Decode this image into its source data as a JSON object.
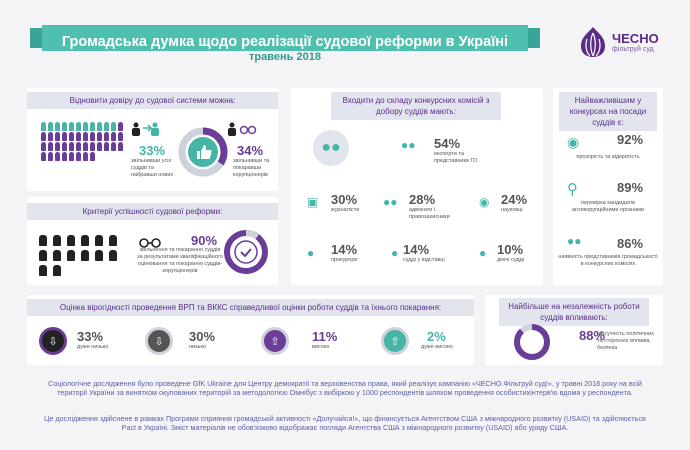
{
  "header": {
    "title": "Громадська думка щодо реалізації судової реформи в Україні",
    "subtitle": "травень 2018",
    "logo_text": "ЧЕСНО",
    "logo_sub": "фільтруй суд",
    "colors": {
      "teal": "#45b5a6",
      "purple": "#6a3d96",
      "dark": "#222222"
    }
  },
  "trust": {
    "title": "Відновити довіру до судової системи можна:",
    "stat1": {
      "value": "33%",
      "caption": "звільнивши усіх суддів та набравши нових"
    },
    "stat2": {
      "value": "34%",
      "caption": "звільнивши та покаравши корупціонерів"
    }
  },
  "criteria": {
    "title": "Критерії успішності судової реформи:",
    "stat": {
      "value": "90%",
      "caption": "звільнення та покарання суддів за результатами кваліфікаційного оцінювання та покарання суддів-корупціонерів"
    }
  },
  "commissions": {
    "title": "Входити до складу конкурсних комісій з добору суддів мають:",
    "items": [
      {
        "value": "54%",
        "caption": "експерти та представники ГО"
      },
      {
        "value": "30%",
        "caption": "журналісти"
      },
      {
        "value": "28%",
        "caption": "адвокати і правозахисники"
      },
      {
        "value": "24%",
        "caption": "науковці"
      },
      {
        "value": "14%",
        "caption": "прокурори"
      },
      {
        "value": "14%",
        "caption": "судді у відставці"
      },
      {
        "value": "10%",
        "caption": "діючі судді"
      }
    ]
  },
  "important": {
    "title": "Найважливішим у конкурсах на посади суддів є:",
    "items": [
      {
        "value": "92%",
        "caption": "прозорість та відкритість"
      },
      {
        "value": "89%",
        "caption": "перевірка кандидатів антикорупційними органами"
      },
      {
        "value": "86%",
        "caption": "наявність представників громадськості в конкурсних комісіях"
      }
    ]
  },
  "assessment": {
    "title": "Оцінка вірогідності проведення ВРП та ВККС справедливої оцінки роботи суддів та їхнього покарання:",
    "items": [
      {
        "value": "33%",
        "caption": "дуже низько",
        "level": 33
      },
      {
        "value": "30%",
        "caption": "низько",
        "level": 30
      },
      {
        "value": "11%",
        "caption": "високо",
        "level": 11
      },
      {
        "value": "2%",
        "caption": "дуже високо",
        "level": 2
      }
    ]
  },
  "independence": {
    "title": "Найбільше на незалежність роботи суддів впливають:",
    "stat": {
      "value": "88%",
      "caption": "відсутність політичних та сторонніх впливів, безпека"
    }
  },
  "footer": {
    "p1": "Соціологічне дослідження було проведене GfK Ukraine для Центру демократії та верховенства права, який реалізує кампанію «ЧЕСНО.Фільтруй суд!», у травні 2018 року на всій території України за винятком окупованих територій за методологією Омнібус з вибіркою у 1000 респондентів шляхом проведення особистихінтерв'ю вдома у респондента.",
    "p2": "Це дослідження здійснене в рамках Програми сприяння громадській активності «Долучайся!», що фінансується Агентством США з міжнародного розвитку (USAID) та здійснюється Pact в Україні. Зміст матеріалів не обов'язково відображає погляди Агентства США з міжнародного розвитку (USAID) або уряду США."
  }
}
